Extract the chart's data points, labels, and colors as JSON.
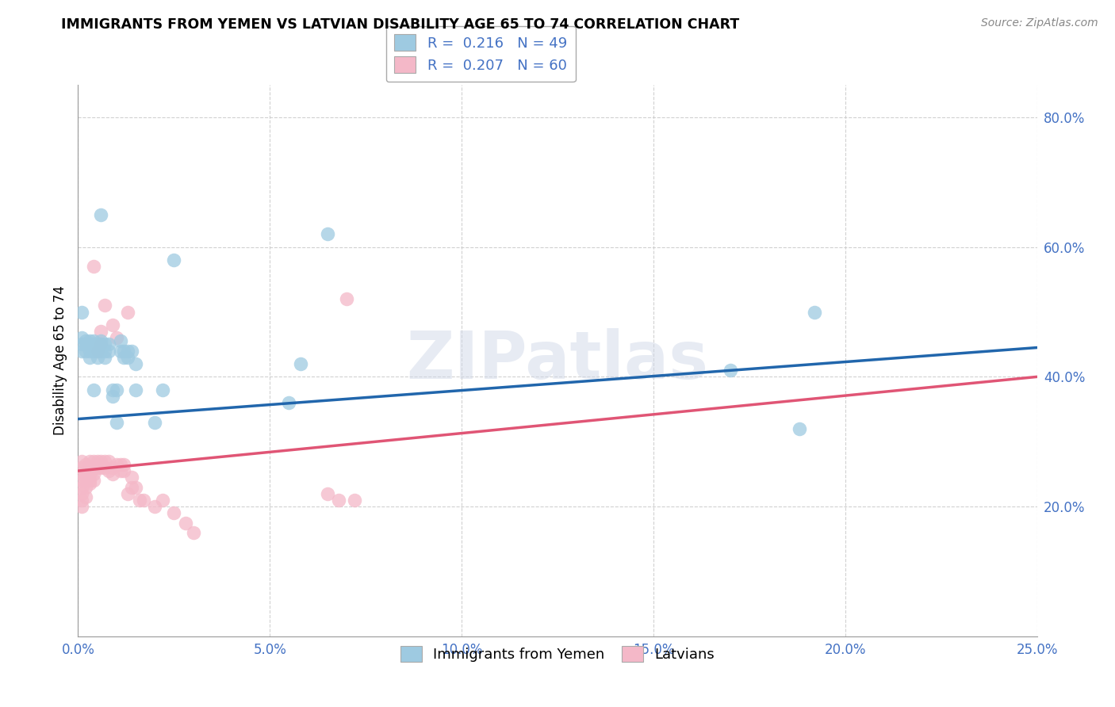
{
  "title": "IMMIGRANTS FROM YEMEN VS LATVIAN DISABILITY AGE 65 TO 74 CORRELATION CHART",
  "source": "Source: ZipAtlas.com",
  "ylabel": "Disability Age 65 to 74",
  "xlim": [
    0.0,
    0.25
  ],
  "ylim": [
    0.0,
    0.85
  ],
  "xtick_vals": [
    0.0,
    0.05,
    0.1,
    0.15,
    0.2,
    0.25
  ],
  "xtick_labels": [
    "0.0%",
    "5.0%",
    "10.0%",
    "15.0%",
    "20.0%",
    "25.0%"
  ],
  "ytick_vals": [
    0.2,
    0.4,
    0.6,
    0.8
  ],
  "ytick_labels": [
    "20.0%",
    "40.0%",
    "60.0%",
    "80.0%"
  ],
  "legend1_r": "0.216",
  "legend1_n": "49",
  "legend2_r": "0.207",
  "legend2_n": "60",
  "blue_color": "#9ecae1",
  "pink_color": "#f4b8c8",
  "blue_line_color": "#2166ac",
  "pink_line_color": "#e05575",
  "blue_points_x": [
    0.001,
    0.001,
    0.001,
    0.001,
    0.002,
    0.002,
    0.002,
    0.003,
    0.003,
    0.003,
    0.003,
    0.004,
    0.004,
    0.004,
    0.004,
    0.005,
    0.005,
    0.005,
    0.006,
    0.006,
    0.006,
    0.006,
    0.007,
    0.007,
    0.007,
    0.008,
    0.008,
    0.009,
    0.009,
    0.01,
    0.01,
    0.011,
    0.011,
    0.012,
    0.012,
    0.013,
    0.013,
    0.014,
    0.015,
    0.015,
    0.02,
    0.022,
    0.025,
    0.055,
    0.058,
    0.065,
    0.17,
    0.188,
    0.192
  ],
  "blue_points_y": [
    0.5,
    0.46,
    0.45,
    0.44,
    0.455,
    0.45,
    0.44,
    0.455,
    0.45,
    0.44,
    0.43,
    0.455,
    0.45,
    0.44,
    0.38,
    0.45,
    0.44,
    0.43,
    0.455,
    0.45,
    0.44,
    0.65,
    0.45,
    0.44,
    0.43,
    0.45,
    0.44,
    0.38,
    0.37,
    0.38,
    0.33,
    0.455,
    0.44,
    0.44,
    0.43,
    0.44,
    0.43,
    0.44,
    0.38,
    0.42,
    0.33,
    0.38,
    0.58,
    0.36,
    0.42,
    0.62,
    0.41,
    0.32,
    0.5
  ],
  "pink_points_x": [
    0.001,
    0.001,
    0.001,
    0.001,
    0.001,
    0.001,
    0.001,
    0.001,
    0.002,
    0.002,
    0.002,
    0.002,
    0.002,
    0.003,
    0.003,
    0.003,
    0.003,
    0.003,
    0.004,
    0.004,
    0.004,
    0.004,
    0.004,
    0.005,
    0.005,
    0.005,
    0.006,
    0.006,
    0.006,
    0.006,
    0.007,
    0.007,
    0.007,
    0.008,
    0.008,
    0.009,
    0.009,
    0.009,
    0.01,
    0.01,
    0.011,
    0.011,
    0.012,
    0.012,
    0.013,
    0.013,
    0.014,
    0.014,
    0.015,
    0.016,
    0.017,
    0.02,
    0.022,
    0.025,
    0.028,
    0.03,
    0.065,
    0.068,
    0.07,
    0.072
  ],
  "pink_points_y": [
    0.27,
    0.26,
    0.25,
    0.24,
    0.23,
    0.22,
    0.21,
    0.2,
    0.265,
    0.25,
    0.24,
    0.23,
    0.215,
    0.27,
    0.26,
    0.25,
    0.24,
    0.235,
    0.27,
    0.26,
    0.25,
    0.24,
    0.57,
    0.27,
    0.26,
    0.44,
    0.27,
    0.26,
    0.45,
    0.47,
    0.27,
    0.26,
    0.51,
    0.27,
    0.255,
    0.26,
    0.25,
    0.48,
    0.265,
    0.46,
    0.265,
    0.255,
    0.265,
    0.255,
    0.5,
    0.22,
    0.23,
    0.245,
    0.23,
    0.21,
    0.21,
    0.2,
    0.21,
    0.19,
    0.175,
    0.16,
    0.22,
    0.21,
    0.52,
    0.21
  ],
  "blue_line_x0": 0.0,
  "blue_line_x1": 0.25,
  "blue_line_y0": 0.335,
  "blue_line_y1": 0.445,
  "pink_line_x0": 0.0,
  "pink_line_x1": 0.25,
  "pink_line_y0": 0.255,
  "pink_line_y1": 0.4
}
